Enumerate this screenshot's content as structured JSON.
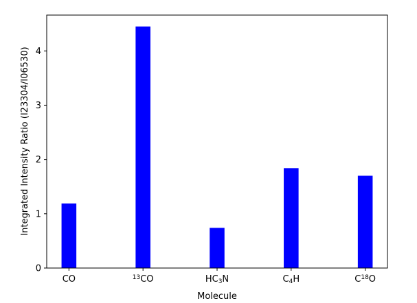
{
  "chart_data": {
    "type": "bar",
    "categories": [
      {
        "base": "CO",
        "parts": [
          {
            "t": "CO",
            "s": ""
          }
        ]
      },
      {
        "base": "13CO",
        "parts": [
          {
            "t": "13",
            "s": "sup"
          },
          {
            "t": "CO",
            "s": ""
          }
        ]
      },
      {
        "base": "HC3N",
        "parts": [
          {
            "t": "HC",
            "s": ""
          },
          {
            "t": "3",
            "s": "sub"
          },
          {
            "t": "N",
            "s": ""
          }
        ]
      },
      {
        "base": "C4H",
        "parts": [
          {
            "t": "C",
            "s": ""
          },
          {
            "t": "4",
            "s": "sub"
          },
          {
            "t": "H",
            "s": ""
          }
        ]
      },
      {
        "base": "C18O",
        "parts": [
          {
            "t": "C",
            "s": ""
          },
          {
            "t": "18",
            "s": "sup"
          },
          {
            "t": "O",
            "s": ""
          }
        ]
      }
    ],
    "values": [
      1.19,
      4.45,
      0.74,
      1.84,
      1.7
    ],
    "title": "",
    "xlabel": "Molecule",
    "ylabel": "Integrated Intensity Ratio (I23304/I06530)",
    "ylim": [
      0,
      4.66
    ],
    "yticks": [
      0,
      1,
      2,
      3,
      4
    ],
    "bar_color": "#0000ff",
    "grid": false
  }
}
